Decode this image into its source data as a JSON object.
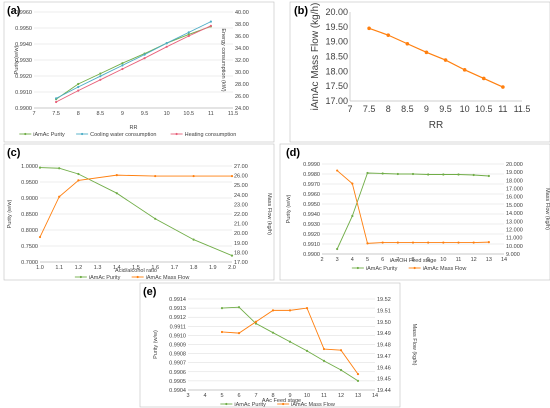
{
  "colors": {
    "green": "#70ad47",
    "orange": "#ff7f0e",
    "blue": "#4bacc6",
    "pink": "#e8607a",
    "grid": "#d9d9d9"
  },
  "chart_data": [
    {
      "id": "a",
      "panel_label": "(a)",
      "type": "line",
      "xlabel": "RR",
      "ylabel_left": "Purity (w/w)",
      "ylabel_right": "Energy consumption (kW)",
      "xlim": [
        7,
        11.5
      ],
      "x_ticks": [
        7,
        7.5,
        8,
        8.5,
        9,
        9.5,
        10,
        10.5,
        11,
        11.5
      ],
      "x_tick_labels": [
        "7",
        "7.5",
        "8",
        "8.5",
        "9",
        "9.5",
        "10",
        "10.5",
        "11",
        "11.5"
      ],
      "ylim_left": [
        0.99,
        0.996
      ],
      "y_ticks_left": [
        0.99,
        0.991,
        0.992,
        0.993,
        0.994,
        0.995,
        0.996
      ],
      "y_tick_labels_left": [
        "0.9900",
        "0.9910",
        "0.9920",
        "0.9930",
        "0.9940",
        "0.9950",
        "0.9960"
      ],
      "ylim_right": [
        24,
        40
      ],
      "y_ticks_right": [
        24,
        26,
        28,
        30,
        32,
        34,
        36,
        38,
        40
      ],
      "y_tick_labels_right": [
        "24.00",
        "26.00",
        "28.00",
        "30.00",
        "32.00",
        "34.00",
        "36.00",
        "38.00",
        "40.00"
      ],
      "grid": "horizontal",
      "legend_position": "bottom",
      "series": [
        {
          "name": "iAmAc Purity",
          "axis": "left",
          "color": "#70ad47",
          "marker": "circle",
          "x": [
            7.5,
            8,
            8.5,
            9,
            9.5,
            10,
            10.5,
            11
          ],
          "y": [
            0.99055,
            0.9915,
            0.99215,
            0.9928,
            0.9934,
            0.99405,
            0.9946,
            0.9951
          ]
        },
        {
          "name": "Cooling water consumption",
          "axis": "right",
          "color": "#4bacc6",
          "marker": "circle",
          "x": [
            7.5,
            8,
            8.5,
            9,
            9.5,
            10,
            10.5,
            11
          ],
          "y": [
            25.6,
            27.5,
            29.3,
            31.1,
            32.9,
            34.8,
            36.6,
            38.4
          ]
        },
        {
          "name": "Heating consumption",
          "axis": "right",
          "color": "#e8607a",
          "marker": "circle",
          "x": [
            7.5,
            8,
            8.5,
            9,
            9.5,
            10,
            10.5,
            11
          ],
          "y": [
            25.0,
            26.9,
            28.7,
            30.5,
            32.3,
            34.2,
            36.0,
            37.7
          ]
        }
      ]
    },
    {
      "id": "b",
      "panel_label": "(b)",
      "type": "line",
      "xlabel": "RR",
      "ylabel_left": "iAmAc Mass Flow (kg/h)",
      "xlim": [
        7,
        11.5
      ],
      "x_ticks": [
        7,
        7.5,
        8,
        8.5,
        9,
        9.5,
        10,
        10.5,
        11,
        11.5
      ],
      "x_tick_labels": [
        "7",
        "7.5",
        "8",
        "8.5",
        "9",
        "9.5",
        "10",
        "10.5",
        "11",
        "11.5"
      ],
      "ylim_left": [
        17,
        20
      ],
      "y_ticks_left": [
        17,
        17.5,
        18,
        18.5,
        19,
        19.5,
        20
      ],
      "y_tick_labels_left": [
        "17.00",
        "17.50",
        "18.00",
        "18.50",
        "19.00",
        "19.50",
        "20.00"
      ],
      "grid": "none",
      "series": [
        {
          "name": "",
          "axis": "left",
          "color": "#ff7f0e",
          "marker": "circle",
          "x": [
            7.5,
            8,
            8.5,
            9,
            9.5,
            10,
            10.5,
            11
          ],
          "y": [
            19.45,
            19.22,
            18.93,
            18.64,
            18.38,
            18.05,
            17.76,
            17.47
          ]
        }
      ]
    },
    {
      "id": "c",
      "panel_label": "(c)",
      "type": "line",
      "xlabel": "Acid/alcohol ratio",
      "ylabel_left": "Purity (w/w)",
      "ylabel_right": "Mass Flow (kg/h)",
      "xlim": [
        1.0,
        2.0
      ],
      "x_ticks": [
        1.0,
        1.1,
        1.2,
        1.3,
        1.4,
        1.5,
        1.6,
        1.7,
        1.8,
        1.9,
        2.0
      ],
      "x_tick_labels": [
        "1.0",
        "1.1",
        "1.2",
        "1.3",
        "1.4",
        "1.5",
        "1.6",
        "1.7",
        "1.8",
        "1.9",
        "2.0"
      ],
      "ylim_left": [
        0.7,
        1.0
      ],
      "y_ticks_left": [
        0.7,
        0.75,
        0.8,
        0.85,
        0.9,
        0.95,
        1.0
      ],
      "y_tick_labels_left": [
        "0.7000",
        "0.7500",
        "0.8000",
        "0.8500",
        "0.9000",
        "0.9500",
        "1.0000"
      ],
      "ylim_right": [
        17,
        27
      ],
      "y_ticks_right": [
        17,
        18,
        19,
        20,
        21,
        22,
        23,
        24,
        25,
        26,
        27
      ],
      "y_tick_labels_right": [
        "17.00",
        "18.00",
        "19.00",
        "20.00",
        "21.00",
        "22.00",
        "23.00",
        "24.00",
        "25.00",
        "26.00",
        "27.00"
      ],
      "grid": "horizontal",
      "legend_position": "bottom",
      "series": [
        {
          "name": "iAmAc Purity",
          "axis": "left",
          "color": "#70ad47",
          "marker": "circle",
          "x": [
            1.0,
            1.1,
            1.2,
            1.4,
            1.6,
            1.8,
            2.0
          ],
          "y": [
            0.995,
            0.993,
            0.975,
            0.915,
            0.835,
            0.77,
            0.72
          ]
        },
        {
          "name": "iAmAc Mass Flow",
          "axis": "right",
          "color": "#ff7f0e",
          "marker": "circle",
          "x": [
            1.0,
            1.1,
            1.2,
            1.4,
            1.6,
            1.8,
            2.0
          ],
          "y": [
            19.6,
            23.8,
            25.5,
            26.05,
            25.95,
            25.95,
            25.95
          ]
        }
      ]
    },
    {
      "id": "d",
      "panel_label": "(d)",
      "type": "line",
      "xlabel": "iAmOH Feed stage",
      "ylabel_left": "Purity (w/w)",
      "ylabel_right": "Mass Flow (kg/h)",
      "xlim": [
        2,
        14
      ],
      "x_ticks": [
        2,
        3,
        4,
        5,
        6,
        7,
        8,
        9,
        10,
        11,
        12,
        13,
        14
      ],
      "x_tick_labels": [
        "2",
        "3",
        "4",
        "5",
        "6",
        "7",
        "8",
        "9",
        "10",
        "11",
        "12",
        "13",
        "14"
      ],
      "ylim_left": [
        0.99,
        0.999
      ],
      "y_ticks_left": [
        0.99,
        0.991,
        0.992,
        0.993,
        0.994,
        0.995,
        0.996,
        0.997,
        0.998,
        0.999
      ],
      "y_tick_labels_left": [
        "0.9900",
        "0.9910",
        "0.9920",
        "0.9930",
        "0.9940",
        "0.9950",
        "0.9960",
        "0.9970",
        "0.9980",
        "0.9990"
      ],
      "ylim_right": [
        9,
        20
      ],
      "y_ticks_right": [
        9,
        10,
        11,
        12,
        13,
        14,
        15,
        16,
        17,
        18,
        19,
        20
      ],
      "y_tick_labels_right": [
        "9.000",
        "10.000",
        "11.000",
        "12.000",
        "13.000",
        "14.000",
        "15.000",
        "16.000",
        "17.000",
        "18.000",
        "19.000",
        "20.000"
      ],
      "grid": "horizontal",
      "legend_position": "bottom",
      "series": [
        {
          "name": "iAmAc Purity",
          "axis": "left",
          "color": "#70ad47",
          "marker": "circle",
          "x": [
            3,
            4,
            5,
            6,
            7,
            8,
            9,
            10,
            11,
            12,
            13
          ],
          "y": [
            0.9905,
            0.9938,
            0.9981,
            0.99805,
            0.998,
            0.998,
            0.99795,
            0.99795,
            0.99795,
            0.9979,
            0.9978
          ]
        },
        {
          "name": "iAmAc Mass Flow",
          "axis": "right",
          "color": "#ff7f0e",
          "marker": "circle",
          "x": [
            3,
            4,
            5,
            6,
            7,
            8,
            9,
            10,
            11,
            12,
            13
          ],
          "y": [
            19.2,
            17.6,
            10.3,
            10.4,
            10.4,
            10.4,
            10.4,
            10.4,
            10.4,
            10.4,
            10.45
          ]
        }
      ]
    },
    {
      "id": "e",
      "panel_label": "(e)",
      "type": "line",
      "xlabel": "AAc Feed stage",
      "ylabel_left": "Purity (w/w)",
      "ylabel_right": "Mass Flow (kg/h)",
      "xlim": [
        3,
        14
      ],
      "x_ticks": [
        3,
        4,
        5,
        6,
        7,
        8,
        9,
        10,
        11,
        12,
        13,
        14
      ],
      "x_tick_labels": [
        "3",
        "4",
        "5",
        "6",
        "7",
        "8",
        "9",
        "10",
        "11",
        "12",
        "13",
        "14"
      ],
      "ylim_left": [
        0.9904,
        0.9914
      ],
      "y_ticks_left": [
        0.9904,
        0.9905,
        0.9906,
        0.9907,
        0.9908,
        0.9909,
        0.991,
        0.9911,
        0.9912,
        0.9913,
        0.9914
      ],
      "y_tick_labels_left": [
        "0.9904",
        "0.9905",
        "0.9906",
        "0.9907",
        "0.9908",
        "0.9909",
        "0.9910",
        "0.9911",
        "0.9912",
        "0.9913",
        "0.9914"
      ],
      "ylim_right": [
        19.44,
        19.52
      ],
      "y_ticks_right": [
        19.44,
        19.45,
        19.46,
        19.47,
        19.48,
        19.49,
        19.5,
        19.51,
        19.52
      ],
      "y_tick_labels_right": [
        "19.44",
        "19.45",
        "19.46",
        "19.47",
        "19.48",
        "19.49",
        "19.50",
        "19.51",
        "19.52"
      ],
      "grid": "horizontal",
      "legend_position": "bottom",
      "series": [
        {
          "name": "iAmAc Purity",
          "axis": "left",
          "color": "#70ad47",
          "marker": "circle",
          "x": [
            5,
            6,
            7,
            8,
            9,
            10,
            11,
            12,
            13
          ],
          "y": [
            0.9913,
            0.99131,
            0.99113,
            0.99103,
            0.99093,
            0.99083,
            0.99072,
            0.99062,
            0.9905
          ]
        },
        {
          "name": "iAmAc Mass Flow",
          "axis": "right",
          "color": "#ff7f0e",
          "marker": "circle",
          "x": [
            5,
            6,
            7,
            8,
            9,
            10,
            11,
            12,
            13
          ],
          "y": [
            19.491,
            19.49,
            19.5,
            19.51,
            19.51,
            19.512,
            19.476,
            19.475,
            19.454
          ]
        }
      ]
    }
  ]
}
